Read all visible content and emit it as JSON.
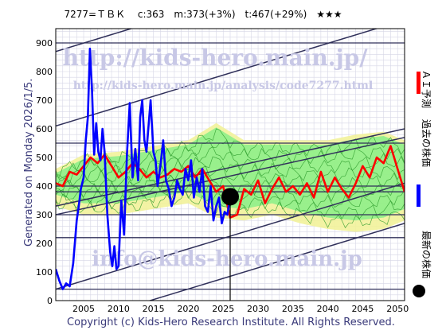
{
  "header": {
    "text": "7277=ＴＢＫ　 c:363　m:373(+3%)　t:467(+29%)　★★★"
  },
  "generated_label": "Generated on Monday 2026/1/5.",
  "copyright": "Copyright (c) Kids-Hero Research Institute. All Rights Reserved.",
  "watermarks": {
    "url": "http://kids-hero.main.jp/",
    "analysis": "http://kids-hero.main.jp/analysis/code7277.html",
    "email": "info@kids-hero.main.jp"
  },
  "legend": {
    "ai": "ＡＩ予測",
    "past": "過去の株価",
    "latest": "最新の株価"
  },
  "colors": {
    "ai_line": "#ff0000",
    "past_line": "#0000ff",
    "latest_marker": "#000000",
    "band_fill": "#88ee88",
    "band_stroke": "#2a9a2a",
    "low_band_fill": "#f2f29a",
    "grid": "#d6d6e6",
    "hline": "#30305a"
  },
  "chart_data": {
    "type": "line",
    "title": "",
    "xlabel": "",
    "ylabel": "",
    "xlim": [
      2001,
      2051
    ],
    "ylim": [
      0,
      950
    ],
    "xticks": [
      2005,
      2010,
      2015,
      2020,
      2025,
      2030,
      2035,
      2040,
      2045,
      2050
    ],
    "yticks": [
      0,
      100,
      200,
      300,
      400,
      500,
      600,
      700,
      800,
      900
    ],
    "horizontal_lines": [
      40,
      220,
      300,
      380,
      400,
      550,
      900
    ],
    "trend_lines": [
      {
        "x": [
          2001,
          2051
        ],
        "y": [
          870,
          1240
        ]
      },
      {
        "x": [
          2001,
          2051
        ],
        "y": [
          610,
          980
        ]
      },
      {
        "x": [
          2001,
          2051
        ],
        "y": [
          330,
          600
        ]
      },
      {
        "x": [
          2001,
          2051
        ],
        "y": [
          300,
          570
        ]
      },
      {
        "x": [
          2001,
          2051
        ],
        "y": [
          40,
          410
        ]
      },
      {
        "x": [
          2001,
          2051
        ],
        "y": [
          -100,
          270
        ]
      }
    ],
    "series": [
      {
        "name": "過去の株価",
        "x": [
          2001,
          2001.5,
          2002,
          2002.5,
          2003,
          2003.5,
          2004,
          2004.3,
          2004.6,
          2005,
          2005.3,
          2005.6,
          2005.9,
          2006.2,
          2006.5,
          2006.8,
          2007.1,
          2007.4,
          2007.7,
          2008,
          2008.4,
          2008.8,
          2009.1,
          2009.4,
          2009.7,
          2010,
          2010.4,
          2010.8,
          2011.2,
          2011.6,
          2012,
          2012.4,
          2012.8,
          2013.1,
          2013.4,
          2013.7,
          2014,
          2014.3,
          2014.6,
          2015,
          2015.3,
          2015.6,
          2016,
          2016.4,
          2016.8,
          2017.2,
          2017.6,
          2018,
          2018.4,
          2018.8,
          2019.2,
          2019.6,
          2020,
          2020.4,
          2020.8,
          2021.2,
          2021.6,
          2022,
          2022.4,
          2022.8,
          2023.2,
          2023.6,
          2024,
          2024.4,
          2024.8,
          2025.2,
          2025.6,
          2026
        ],
        "y": [
          110,
          70,
          40,
          60,
          50,
          130,
          280,
          330,
          390,
          430,
          560,
          640,
          880,
          730,
          510,
          620,
          520,
          490,
          600,
          520,
          300,
          170,
          120,
          190,
          110,
          120,
          350,
          230,
          510,
          690,
          430,
          530,
          420,
          640,
          700,
          560,
          520,
          610,
          700,
          520,
          490,
          400,
          470,
          560,
          420,
          390,
          330,
          360,
          420,
          390,
          370,
          460,
          420,
          490,
          360,
          430,
          380,
          460,
          330,
          310,
          400,
          280,
          330,
          360,
          270,
          310,
          300,
          363
        ]
      },
      {
        "name": "ＡＩ予測",
        "x": [
          2001,
          2002,
          2003,
          2004,
          2005,
          2006,
          2007,
          2008,
          2009,
          2010,
          2011,
          2012,
          2013,
          2014,
          2015,
          2016,
          2017,
          2018,
          2019,
          2020,
          2021,
          2022,
          2023,
          2024,
          2025,
          2026,
          2027,
          2028,
          2029,
          2030,
          2031,
          2032,
          2033,
          2034,
          2035,
          2036,
          2037,
          2038,
          2039,
          2040,
          2041,
          2042,
          2043,
          2044,
          2045,
          2046,
          2047,
          2048,
          2049,
          2050,
          2051
        ],
        "y": [
          410,
          400,
          450,
          440,
          470,
          500,
          480,
          510,
          470,
          430,
          450,
          480,
          460,
          430,
          450,
          430,
          440,
          460,
          450,
          470,
          430,
          460,
          420,
          380,
          400,
          290,
          300,
          390,
          370,
          420,
          340,
          390,
          430,
          380,
          400,
          370,
          410,
          360,
          450,
          380,
          430,
          390,
          360,
          410,
          470,
          430,
          500,
          480,
          540,
          460,
          380
        ]
      }
    ],
    "band_outer": {
      "x": [
        2001,
        2005,
        2010,
        2015,
        2020,
        2024,
        2028,
        2032,
        2036,
        2040,
        2044,
        2048,
        2051
      ],
      "upper": [
        460,
        510,
        520,
        540,
        560,
        620,
        560,
        560,
        560,
        560,
        580,
        590,
        560
      ],
      "lower": [
        330,
        300,
        300,
        320,
        340,
        290,
        280,
        300,
        270,
        250,
        240,
        250,
        280
      ]
    },
    "latest_point": {
      "x": 2026,
      "y": 363
    },
    "latest_vertical_line": true,
    "grid": true
  }
}
